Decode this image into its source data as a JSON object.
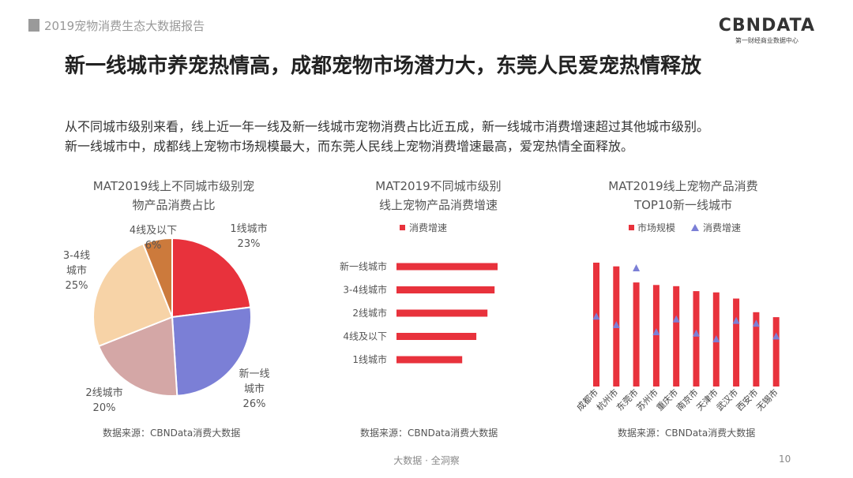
{
  "header": {
    "report_title": "2019宠物消费生态大数据报告",
    "logo_main": "CBNDATA",
    "logo_sub": "第一财经商业数据中心"
  },
  "headline": "新一线城市养宠热情高，成都宠物市场潜力大，东莞人民爱宠热情释放",
  "description": [
    "从不同城市级别来看，线上近一年一线及新一线城市宠物消费占比近五成，新一线城市消费增速超过其他城市级别。",
    "新一线城市中，成都线上宠物市场规模最大，而东莞人民线上宠物消费增速最高，爱宠热情全面释放。"
  ],
  "chart_data": [
    {
      "type": "pie",
      "title": [
        "MAT2019线上不同城市级别宠",
        "物产品消费占比"
      ],
      "slices": [
        {
          "label": "1线城市",
          "value": 23,
          "pct": "23%",
          "color": "#e8323c"
        },
        {
          "label": "新一线城市",
          "value": 26,
          "pct": "26%",
          "color": "#7b7fd6"
        },
        {
          "label": "2线城市",
          "value": 20,
          "pct": "20%",
          "color": "#d4a7a6"
        },
        {
          "label": "3-4线城市",
          "value": 25,
          "pct": "25%",
          "color": "#f7d3a7"
        },
        {
          "label": "4线及以下",
          "value": 6,
          "pct": "6%",
          "color": "#cc7a3c"
        }
      ],
      "source": "数据来源：CBNData消费大数据"
    },
    {
      "type": "bar",
      "orientation": "horizontal",
      "title": [
        "MAT2019不同城市级别",
        "线上宠物产品消费增速"
      ],
      "legend": [
        "消费增速"
      ],
      "categories": [
        "新一线城市",
        "3-4线城市",
        "2线城市",
        "4线及以下",
        "1线城市"
      ],
      "values": [
        1.0,
        0.97,
        0.9,
        0.79,
        0.65
      ],
      "color": "#e8323c",
      "source": "数据来源：CBNData消费大数据"
    },
    {
      "type": "bar",
      "title": [
        "MAT2019线上宠物产品消费",
        "TOP10新一线城市"
      ],
      "legend": [
        "市场规模",
        "消费增速"
      ],
      "categories": [
        "成都市",
        "杭州市",
        "东莞市",
        "苏州市",
        "重庆市",
        "南京市",
        "天津市",
        "武汉市",
        "西安市",
        "无锡市"
      ],
      "series": [
        {
          "name": "市场规模",
          "type": "bar",
          "color": "#e8323c",
          "values": [
            1.0,
            0.97,
            0.84,
            0.82,
            0.81,
            0.77,
            0.76,
            0.71,
            0.6,
            0.56
          ]
        },
        {
          "name": "消费增速",
          "type": "marker",
          "color": "#7b7fd6",
          "values": [
            0.66,
            0.6,
            1.0,
            0.55,
            0.64,
            0.54,
            0.5,
            0.63,
            0.61,
            0.52
          ]
        }
      ],
      "source": "数据来源：CBNData消费大数据"
    }
  ],
  "footer": "大数据 · 全洞察",
  "page_number": "10"
}
